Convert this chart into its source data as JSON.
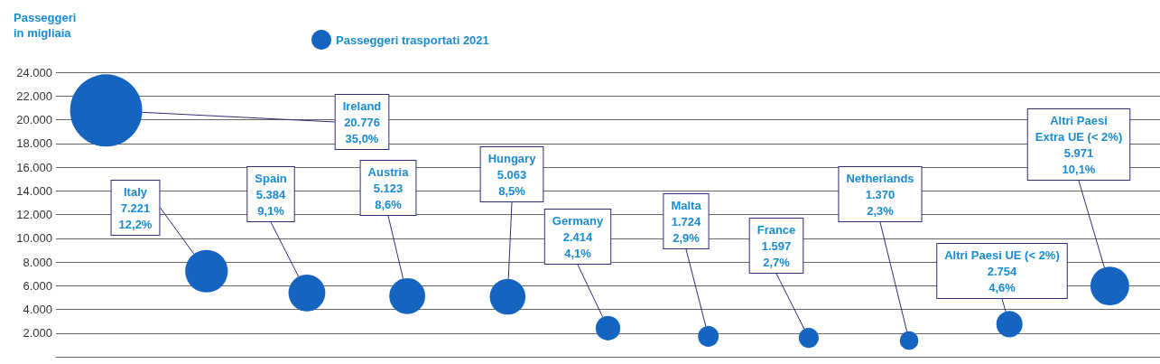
{
  "chart_data": {
    "type": "bubble",
    "ylabel": "Passeggeri\nin migliaia",
    "categories": [
      null,
      null,
      null,
      null,
      null,
      null,
      null,
      null,
      null,
      null,
      null
    ],
    "series": [
      {
        "name": "Passeggeri trasportati 2021",
        "color": "#1565c0",
        "values": [
          20776,
          7221,
          5384,
          5123,
          5063,
          2414,
          1724,
          1597,
          1370,
          2754,
          5971
        ],
        "sizes": [
          1,
          0.348,
          0.259,
          0.247,
          0.244,
          0.116,
          0.083,
          0.077,
          0.066,
          0.133,
          0.287
        ],
        "value_labels": [
          "Ireland\n20.776\n35,0%",
          "Italy\n7.221\n12,2%",
          "Spain\n5.384\n9,1%",
          "Austria\n5.123\n8,6%",
          "Hungary\n5.063\n8,5%",
          "Germany\n2.414\n4,1%",
          "Malta\n1.724\n2,9%",
          "France\n1.597\n2,7%",
          "Netherlands\n1.370\n2,3%",
          "Altri Paesi UE (< 2%)\n2.754\n4,6%",
          "Altri Paesi\nExtra UE (< 2%)\n5.971\n10,1%"
        ]
      }
    ],
    "ylim": [
      0,
      24000
    ],
    "yticks": [
      {
        "value": 2000,
        "label": "2.000"
      },
      {
        "value": 4000,
        "label": "4.000"
      },
      {
        "value": 6000,
        "label": "6.000"
      },
      {
        "value": 8000,
        "label": "8.000"
      },
      {
        "value": 10000,
        "label": "10.000"
      },
      {
        "value": 12000,
        "label": "12.000"
      },
      {
        "value": 14000,
        "label": "14.000"
      },
      {
        "value": 16000,
        "label": "16.000"
      },
      {
        "value": 18000,
        "label": "18.000"
      },
      {
        "value": 20000,
        "label": "20.000"
      },
      {
        "value": 22000,
        "label": "22.000"
      },
      {
        "value": 24000,
        "label": "24.000"
      }
    ],
    "grid": "y",
    "legend": "top",
    "marker": "circle"
  }
}
